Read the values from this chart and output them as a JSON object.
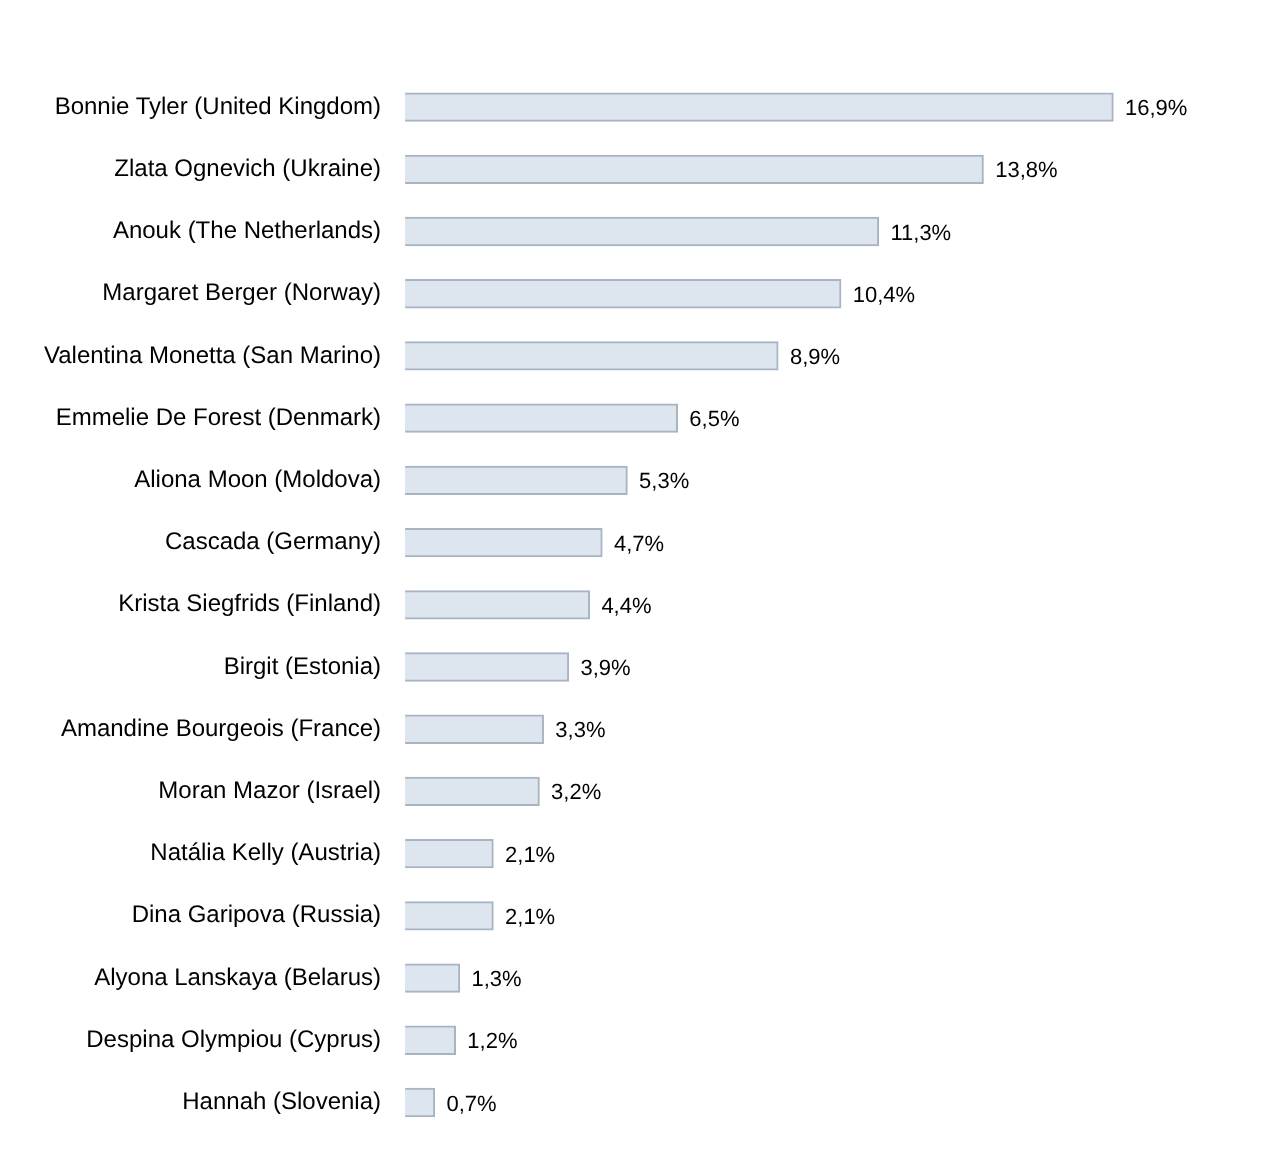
{
  "chart_data": {
    "type": "bar",
    "orientation": "horizontal",
    "categories": [
      "Bonnie Tyler (United Kingdom)",
      "Zlata Ognevich (Ukraine)",
      "Anouk (The Netherlands)",
      "Margaret Berger (Norway)",
      "Valentina Monetta (San Marino)",
      "Emmelie De Forest (Denmark)",
      "Aliona Moon (Moldova)",
      "Cascada (Germany)",
      "Krista Siegfrids (Finland)",
      "Birgit (Estonia)",
      "Amandine Bourgeois (France)",
      "Moran Mazor (Israel)",
      "Natália Kelly (Austria)",
      "Dina Garipova (Russia)",
      "Alyona Lanskaya (Belarus)",
      "Despina Olympiou (Cyprus)",
      "Hannah (Slovenia)"
    ],
    "values": [
      16.9,
      13.8,
      11.3,
      10.4,
      8.9,
      6.5,
      5.3,
      4.7,
      4.4,
      3.9,
      3.3,
      3.2,
      2.1,
      2.1,
      1.3,
      1.2,
      0.7
    ],
    "value_labels": [
      "16,9%",
      "13,8%",
      "11,3%",
      "10,4%",
      "8,9%",
      "6,5%",
      "5,3%",
      "4,7%",
      "4,4%",
      "3,9%",
      "3,3%",
      "3,2%",
      "2,1%",
      "2,1%",
      "1,3%",
      "1,2%",
      "0,7%"
    ],
    "color": "#dde5ef",
    "grid": false,
    "legend": false,
    "tick_labels": "y"
  }
}
